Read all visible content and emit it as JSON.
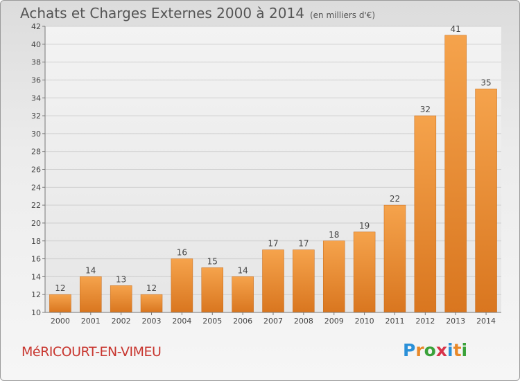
{
  "title": "Achats et Charges Externes 2000 à 2014",
  "unit_label": "(en milliers d'€)",
  "commune_name": "MéRICOURT-EN-VIMEU",
  "brand": {
    "letters": [
      "P",
      "r",
      "o",
      "x",
      "i",
      "t",
      "i"
    ],
    "colors": [
      "#2a90d8",
      "#e8892a",
      "#3aa23a",
      "#d8334a",
      "#2a90d8",
      "#e8892a",
      "#3aa23a"
    ]
  },
  "colors": {
    "bar_top": "#f5a34c",
    "bar_bottom": "#d9761f",
    "title": "#555555",
    "commune": "#c8362f"
  },
  "chart_data": {
    "type": "bar",
    "categories": [
      "2000",
      "2001",
      "2002",
      "2003",
      "2004",
      "2005",
      "2006",
      "2007",
      "2008",
      "2009",
      "2010",
      "2011",
      "2012",
      "2013",
      "2014"
    ],
    "values": [
      12,
      14,
      13,
      12,
      16,
      15,
      14,
      17,
      17,
      18,
      19,
      22,
      32,
      41,
      35
    ],
    "ylim": [
      10,
      42
    ],
    "yticks": [
      10,
      12,
      14,
      16,
      18,
      20,
      22,
      24,
      26,
      28,
      30,
      32,
      34,
      36,
      38,
      40,
      42
    ],
    "grid": true,
    "title": "Achats et Charges Externes 2000 à 2014",
    "xlabel": "",
    "ylabel": ""
  }
}
